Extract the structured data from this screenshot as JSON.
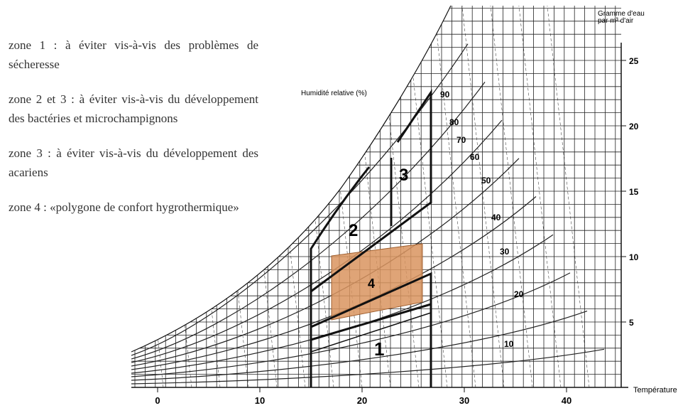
{
  "legend": [
    "zone 1 : à éviter vis-à-vis des problèmes de sécheresse",
    "zone 2 et 3 : à éviter vis-à-vis du développement des bactéries et microchampignons",
    "zone 3 : à éviter vis-à-vis du développement des acariens",
    "zone 4 : «polygone de confort hygrothermique»"
  ],
  "chart": {
    "y_axis_title": "Gramme d'eau par m³ d'air",
    "rh_title": "Humidité relative (%)",
    "x_axis_title": "Température",
    "xticks": [
      0,
      10,
      20,
      30,
      40
    ],
    "yticks": [
      5,
      10,
      15,
      20,
      25
    ],
    "rh_labels": [
      90,
      80,
      70,
      60,
      50,
      40,
      30,
      20,
      10
    ],
    "zones": [
      "1",
      "2",
      "3",
      "4"
    ]
  }
}
